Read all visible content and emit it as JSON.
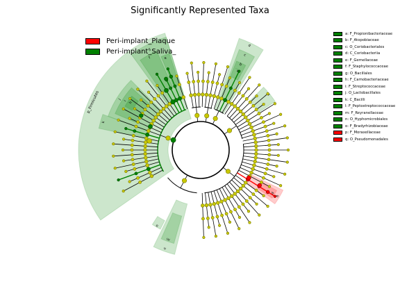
{
  "title": "Significantly Represented Taxa",
  "groups": [
    {
      "name": "Peri-implant_Plaque",
      "color": "#ff0000"
    },
    {
      "name": "Peri-implant_Saliva_",
      "color": "#008000"
    }
  ],
  "taxa_legend": [
    {
      "label": "a: F_Propionibacteriaceae",
      "group": 1
    },
    {
      "label": "b: F_Atopobiaceae",
      "group": 1
    },
    {
      "label": "c: O_Coriobacteriales",
      "group": 1
    },
    {
      "label": "d: C_Coriobacteriia",
      "group": 1
    },
    {
      "label": "e: F_Gemellaceae",
      "group": 1
    },
    {
      "label": "f: F_Staphylococcaceae",
      "group": 1
    },
    {
      "label": "g: O_Bacillales",
      "group": 1
    },
    {
      "label": "h: F_Carnobacteriaceae",
      "group": 1
    },
    {
      "label": "i: F_Streptococcaceae",
      "group": 1
    },
    {
      "label": "j: O_Lactobacillales",
      "group": 1
    },
    {
      "label": "k: C_Bacilli",
      "group": 1
    },
    {
      "label": "l: F_Peptostreptococcaceae",
      "group": 1
    },
    {
      "label": "m: F_Reyranellaceae",
      "group": 1
    },
    {
      "label": "n: O_Hyphomicrobiales",
      "group": 1
    },
    {
      "label": "o: F_Bradyrhizobiaceae",
      "group": 1
    },
    {
      "label": "p: F_Moraxellaceae",
      "group": 0
    },
    {
      "label": "q: O_Pseudomonadales",
      "group": 0
    }
  ],
  "clade_labels": [
    {
      "text": "p_Firmicutes",
      "group": 1
    },
    {
      "text": "k",
      "group": 1
    },
    {
      "text": "j",
      "group": 1
    },
    {
      "text": "i",
      "group": 1
    },
    {
      "text": "h",
      "group": 1
    },
    {
      "text": "g",
      "group": 1
    },
    {
      "text": "f",
      "group": 1
    },
    {
      "text": "e",
      "group": 1
    },
    {
      "text": "d",
      "group": 1
    },
    {
      "text": "c",
      "group": 1
    },
    {
      "text": "b",
      "group": 1
    },
    {
      "text": "a",
      "group": 1
    },
    {
      "text": "l",
      "group": 1
    },
    {
      "text": "n",
      "group": 1
    },
    {
      "text": "m",
      "group": 1
    },
    {
      "text": "o",
      "group": 1
    },
    {
      "text": "q",
      "group": 0
    },
    {
      "text": "p",
      "group": 0
    }
  ],
  "colors": {
    "node_default": "#c8c800",
    "node_default_stroke": "#7a7a00",
    "highlight_alpha": 0.2
  }
}
